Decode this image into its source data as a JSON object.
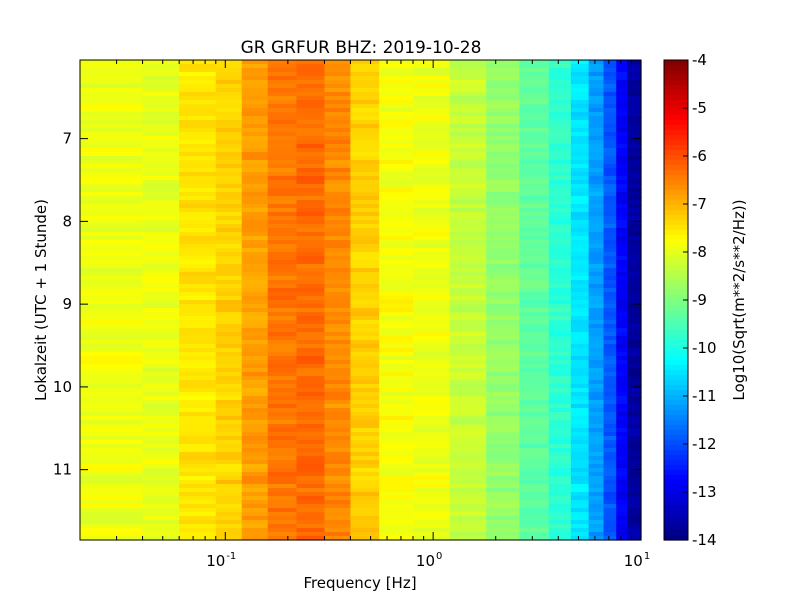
{
  "chart_data": {
    "type": "heatmap",
    "title": "GR GRFUR BHZ: 2019-10-28",
    "xlabel": "Frequency [Hz]",
    "ylabel": "Lokalzeit (UTC + 1 Stunde)",
    "xscale": "log",
    "xlim": [
      0.02,
      10
    ],
    "ylim": [
      6.05,
      11.85
    ],
    "y_inverted": true,
    "x_ticks": [
      {
        "base": "10",
        "exp": "-1",
        "value": 0.1
      },
      {
        "base": "10",
        "exp": "0",
        "value": 1
      },
      {
        "base": "10",
        "exp": "1",
        "value": 10
      }
    ],
    "y_ticks": [
      {
        "label": "7",
        "value": 7
      },
      {
        "label": "8",
        "value": 8
      },
      {
        "label": "9",
        "value": 9
      },
      {
        "label": "10",
        "value": 10
      },
      {
        "label": "11",
        "value": 11
      }
    ],
    "colorbar": {
      "label": "Log10(Sqrt(m**2/s**2/Hz))",
      "colormap": "jet",
      "range": [
        -14,
        -4
      ],
      "ticks": [
        "-4",
        "-5",
        "-6",
        "-7",
        "-8",
        "-9",
        "-10",
        "-11",
        "-12",
        "-13",
        "-14"
      ]
    },
    "frequency_bands": [
      {
        "f0": 0.02,
        "f1": 0.04,
        "level": -7.9
      },
      {
        "f0": 0.04,
        "f1": 0.06,
        "level": -7.95
      },
      {
        "f0": 0.06,
        "f1": 0.09,
        "level": -7.5
      },
      {
        "f0": 0.09,
        "f1": 0.12,
        "level": -7.3
      },
      {
        "f0": 0.12,
        "f1": 0.16,
        "level": -6.8
      },
      {
        "f0": 0.16,
        "f1": 0.22,
        "level": -6.4
      },
      {
        "f0": 0.22,
        "f1": 0.3,
        "level": -6.3
      },
      {
        "f0": 0.3,
        "f1": 0.4,
        "level": -6.6
      },
      {
        "f0": 0.4,
        "f1": 0.55,
        "level": -7.3
      },
      {
        "f0": 0.55,
        "f1": 0.8,
        "level": -7.8
      },
      {
        "f0": 0.8,
        "f1": 1.2,
        "level": -7.9
      },
      {
        "f0": 1.2,
        "f1": 1.8,
        "level": -8.3
      },
      {
        "f0": 1.8,
        "f1": 2.6,
        "level": -8.8
      },
      {
        "f0": 2.6,
        "f1": 3.6,
        "level": -9.3
      },
      {
        "f0": 3.6,
        "f1": 4.6,
        "level": -9.8
      },
      {
        "f0": 4.6,
        "f1": 5.6,
        "level": -10.5
      },
      {
        "f0": 5.6,
        "f1": 6.6,
        "level": -11.2
      },
      {
        "f0": 6.6,
        "f1": 7.6,
        "level": -11.9
      },
      {
        "f0": 7.6,
        "f1": 8.6,
        "level": -12.8
      },
      {
        "f0": 8.6,
        "f1": 10,
        "level": -13.7
      }
    ]
  }
}
